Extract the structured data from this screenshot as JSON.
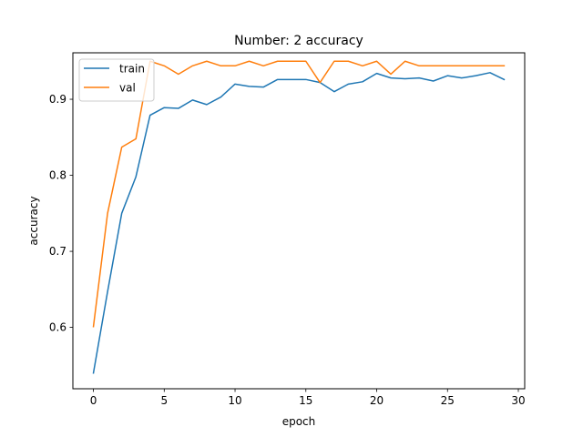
{
  "chart_data": {
    "type": "line",
    "title": "Number: 2 accuracy",
    "xlabel": "epoch",
    "ylabel": "accuracy",
    "xlim": [
      -1.45,
      30.45
    ],
    "ylim": [
      0.5193,
      0.9611
    ],
    "xticks": [
      0,
      5,
      10,
      15,
      20,
      25,
      30
    ],
    "xtick_labels": [
      "0",
      "5",
      "10",
      "15",
      "20",
      "25",
      "30"
    ],
    "yticks": [
      0.6,
      0.7,
      0.8,
      0.9
    ],
    "ytick_labels": [
      "0.6",
      "0.7",
      "0.8",
      "0.9"
    ],
    "grid": false,
    "legend_position": "upper left",
    "x": [
      0,
      1,
      2,
      3,
      4,
      5,
      6,
      7,
      8,
      9,
      10,
      11,
      12,
      13,
      14,
      15,
      16,
      17,
      18,
      19,
      20,
      21,
      22,
      23,
      24,
      25,
      26,
      27,
      28,
      29
    ],
    "series": [
      {
        "name": "train",
        "color": "#1f77b4",
        "values": [
          0.54,
          0.647,
          0.75,
          0.798,
          0.879,
          0.889,
          0.888,
          0.899,
          0.893,
          0.903,
          0.92,
          0.917,
          0.916,
          0.926,
          0.926,
          0.926,
          0.922,
          0.91,
          0.92,
          0.923,
          0.934,
          0.928,
          0.927,
          0.928,
          0.924,
          0.931,
          0.928,
          0.931,
          0.935,
          0.926
        ]
      },
      {
        "name": "val",
        "color": "#ff7f0e",
        "values": [
          0.601,
          0.75,
          0.837,
          0.848,
          0.95,
          0.944,
          0.933,
          0.944,
          0.95,
          0.944,
          0.944,
          0.95,
          0.944,
          0.95,
          0.95,
          0.95,
          0.922,
          0.95,
          0.95,
          0.944,
          0.95,
          0.933,
          0.95,
          0.944,
          0.944,
          0.944,
          0.944,
          0.944,
          0.944,
          0.944
        ]
      }
    ]
  }
}
